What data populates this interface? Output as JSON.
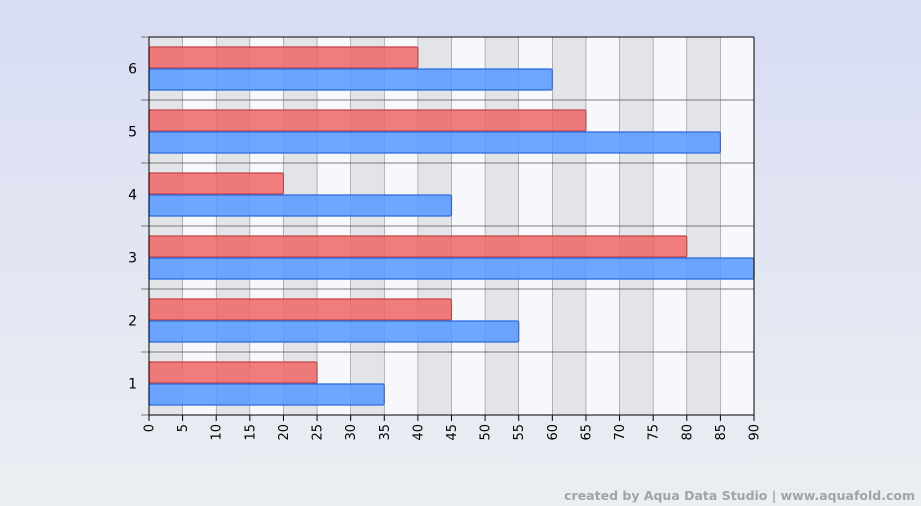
{
  "chart_data": {
    "type": "bar",
    "orientation": "horizontal",
    "title": "",
    "xlabel": "",
    "ylabel": "",
    "categories": [
      "1",
      "2",
      "3",
      "4",
      "5",
      "6"
    ],
    "series": [
      {
        "values": [
          25,
          45,
          80,
          20,
          65,
          40
        ],
        "color": "#ee6666"
      },
      {
        "values": [
          35,
          55,
          90,
          45,
          85,
          60
        ],
        "color": "#5599ff"
      }
    ],
    "xlim": [
      0,
      90
    ],
    "x_ticks": [
      "0",
      "5",
      "10",
      "15",
      "20",
      "25",
      "30",
      "35",
      "40",
      "45",
      "50",
      "55",
      "60",
      "65",
      "70",
      "75",
      "80",
      "85",
      "90"
    ],
    "grid": true,
    "legend": "none"
  },
  "colors": {
    "series_1_fill": "#ee6666",
    "series_1_stroke": "#c64444",
    "series_2_fill": "#5599ff",
    "series_2_stroke": "#2a6ae0",
    "band_light": "#f6f8fb",
    "band_dark": "#e3e4e8"
  },
  "credit": "created by Aqua Data Studio | www.aquafold.com"
}
